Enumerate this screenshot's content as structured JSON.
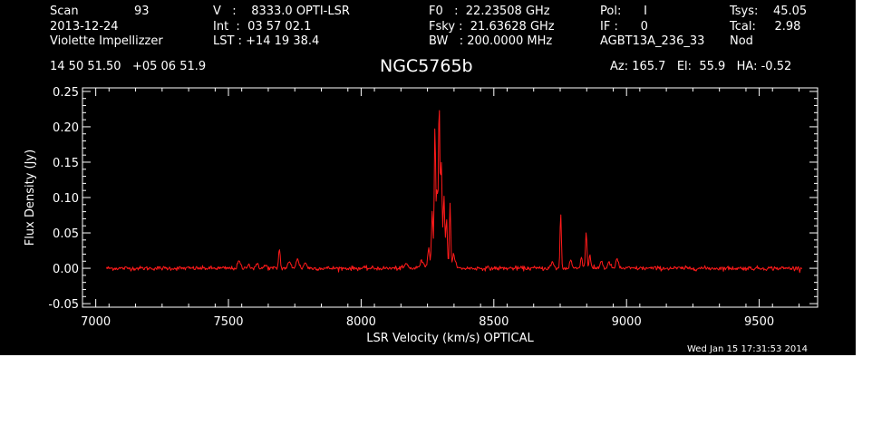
{
  "header": {
    "scan_label": "Scan",
    "scan_value": "93",
    "date": "2013-12-24",
    "observer": "Violette Impellizzer",
    "v_line": "V   :    8333.0 OPTI-LSR",
    "int_line": "Int  :  03 57 02.1",
    "lst_line": "LST : +14 19 38.4",
    "f0_line": "F0   :  22.23508 GHz",
    "fsky_line": "Fsky :  21.63628 GHz",
    "bw_line": "BW   : 200.0000 MHz",
    "pol_line": "Pol:      I",
    "if_line": "IF :      0",
    "project": "AGBT13A_236_33",
    "tsys_line": "Tsys:    45.05",
    "tcal_line": "Tcal:     2.98",
    "mode": "Nod",
    "coords": "14 50 51.50   +05 06 51.9",
    "source": "NGC5765b",
    "azel": "Az: 165.7   El:  55.9   HA: -0.52",
    "timestamp": "Wed Jan 15 17:31:53 2014"
  },
  "colors": {
    "background": "#000000",
    "axes": "#ffffff",
    "trace": "#ff1a1a"
  },
  "chart_data": {
    "type": "line",
    "title": "NGC5765b",
    "xlabel": "LSR Velocity (km/s) OPTICAL",
    "ylabel": "Flux Density (Jy)",
    "xlim": [
      6950,
      9720
    ],
    "ylim": [
      -0.055,
      0.255
    ],
    "xticks": [
      7000,
      7500,
      8000,
      8500,
      9000,
      9500
    ],
    "xticklabels": [
      "7000",
      "7500",
      "8000",
      "8500",
      "9000",
      "9500"
    ],
    "yticks": [
      -0.05,
      0.0,
      0.05,
      0.1,
      0.15,
      0.2,
      0.25
    ],
    "yticklabels": [
      "-0.05",
      "0.00",
      "0.05",
      "0.10",
      "0.15",
      "0.20",
      "0.25"
    ],
    "grid": false,
    "legend": "none",
    "x_range": [
      7040,
      9660
    ],
    "baseline": 0.0,
    "noise_rms": 0.0015,
    "peaks": [
      {
        "v": 7540,
        "a": 0.01,
        "w": 5
      },
      {
        "v": 7575,
        "a": 0.006,
        "w": 5
      },
      {
        "v": 7610,
        "a": 0.007,
        "w": 4
      },
      {
        "v": 7640,
        "a": 0.004,
        "w": 5
      },
      {
        "v": 7692,
        "a": 0.028,
        "w": 3
      },
      {
        "v": 7730,
        "a": 0.008,
        "w": 6
      },
      {
        "v": 7760,
        "a": 0.012,
        "w": 6
      },
      {
        "v": 7790,
        "a": 0.008,
        "w": 5
      },
      {
        "v": 8170,
        "a": 0.006,
        "w": 6
      },
      {
        "v": 8230,
        "a": 0.01,
        "w": 8
      },
      {
        "v": 8255,
        "a": 0.03,
        "w": 4
      },
      {
        "v": 8268,
        "a": 0.08,
        "w": 3
      },
      {
        "v": 8278,
        "a": 0.2,
        "w": 2.5
      },
      {
        "v": 8286,
        "a": 0.11,
        "w": 3
      },
      {
        "v": 8294,
        "a": 0.232,
        "w": 2.5
      },
      {
        "v": 8302,
        "a": 0.15,
        "w": 3
      },
      {
        "v": 8312,
        "a": 0.1,
        "w": 3
      },
      {
        "v": 8322,
        "a": 0.07,
        "w": 3
      },
      {
        "v": 8335,
        "a": 0.093,
        "w": 2.5
      },
      {
        "v": 8350,
        "a": 0.02,
        "w": 5
      },
      {
        "v": 8720,
        "a": 0.008,
        "w": 5
      },
      {
        "v": 8752,
        "a": 0.077,
        "w": 2.5
      },
      {
        "v": 8790,
        "a": 0.012,
        "w": 4
      },
      {
        "v": 8830,
        "a": 0.015,
        "w": 4
      },
      {
        "v": 8848,
        "a": 0.05,
        "w": 3
      },
      {
        "v": 8862,
        "a": 0.02,
        "w": 3
      },
      {
        "v": 8905,
        "a": 0.01,
        "w": 5
      },
      {
        "v": 8935,
        "a": 0.008,
        "w": 5
      },
      {
        "v": 8965,
        "a": 0.012,
        "w": 5
      }
    ]
  }
}
